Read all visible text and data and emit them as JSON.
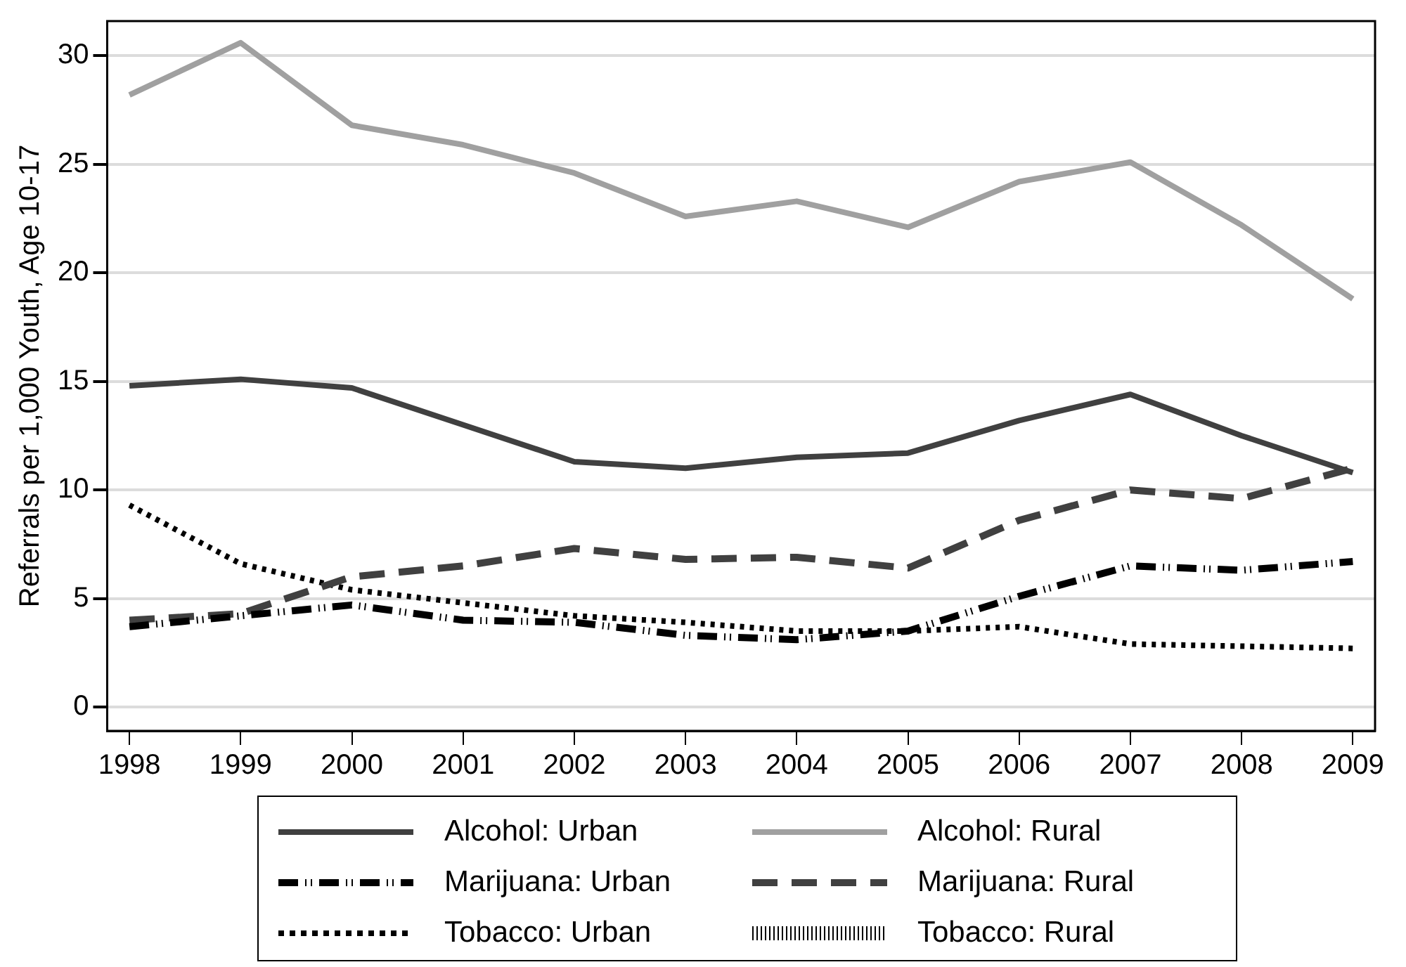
{
  "chart_data": {
    "type": "line",
    "ylabel": "Referrals per 1,000 Youth, Age 10-17",
    "x": [
      1998,
      1999,
      2000,
      2001,
      2002,
      2003,
      2004,
      2005,
      2006,
      2007,
      2008,
      2009
    ],
    "xlim": [
      1997.8,
      2009.2
    ],
    "xticks": [
      1998,
      1999,
      2000,
      2001,
      2002,
      2003,
      2004,
      2005,
      2006,
      2007,
      2008,
      2009
    ],
    "ylim": [
      -1.1,
      31.6
    ],
    "yticks": [
      0,
      5,
      10,
      15,
      20,
      25,
      30
    ],
    "grid": "y",
    "legend": "bottom",
    "marker": "none",
    "series": [
      {
        "name": "Alcohol: Urban",
        "color": "#404040",
        "line_style": "solid",
        "values": [
          14.8,
          15.1,
          14.7,
          13.0,
          11.3,
          11.0,
          11.5,
          11.7,
          13.2,
          14.4,
          12.5,
          10.8
        ]
      },
      {
        "name": "Alcohol: Rural",
        "color": "#a0a0a0",
        "line_style": "solid",
        "values": [
          28.2,
          30.6,
          26.8,
          25.9,
          24.6,
          22.6,
          23.3,
          22.1,
          24.2,
          25.1,
          22.2,
          18.8
        ]
      },
      {
        "name": "Marijuana: Urban",
        "color": "#000000",
        "line_style": "dashdot",
        "values": [
          3.7,
          4.2,
          4.7,
          4.0,
          3.9,
          3.3,
          3.1,
          3.5,
          5.1,
          6.5,
          6.3,
          6.7
        ]
      },
      {
        "name": "Marijuana: Rural",
        "color": "#404040",
        "line_style": "dashed",
        "values": [
          4.0,
          4.3,
          6.0,
          6.5,
          7.3,
          6.8,
          6.9,
          6.4,
          8.6,
          10.0,
          9.6,
          11.0
        ]
      },
      {
        "name": "Tobacco: Urban",
        "color": "#000000",
        "line_style": "dotted",
        "values": [
          9.3,
          6.6,
          5.4,
          4.8,
          4.2,
          3.9,
          3.5,
          3.5,
          3.7,
          2.9,
          2.8,
          2.7
        ]
      },
      {
        "name": "Tobacco: Rural",
        "color": "#000000",
        "line_style": "hatched",
        "values": [
          null,
          null,
          null,
          null,
          null,
          null,
          null,
          null,
          null,
          null,
          null,
          null
        ]
      }
    ]
  }
}
